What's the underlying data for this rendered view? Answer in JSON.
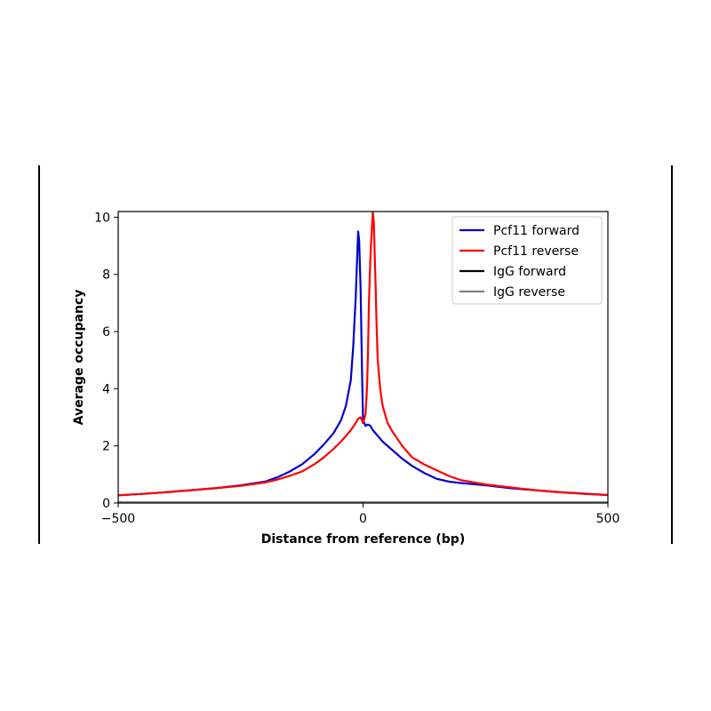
{
  "chart_data": {
    "type": "line",
    "title": "",
    "xlabel": "Distance from reference (bp)",
    "ylabel": "Average occupancy",
    "xlim": [
      -500,
      500
    ],
    "ylim": [
      0,
      10.2
    ],
    "xticks": [
      "−500",
      "0",
      "500"
    ],
    "yticks": [
      "0",
      "2",
      "4",
      "6",
      "8",
      "10"
    ],
    "grid": false,
    "legend_position": "top-right",
    "series": [
      {
        "name": "Pcf11 forward",
        "color": "#0000cc",
        "x": [
          -500,
          -450,
          -400,
          -350,
          -300,
          -250,
          -200,
          -175,
          -150,
          -125,
          -100,
          -80,
          -60,
          -45,
          -35,
          -25,
          -20,
          -15,
          -12,
          -10,
          -8,
          -5,
          -2,
          0,
          5,
          10,
          15,
          20,
          25,
          30,
          40,
          60,
          80,
          100,
          125,
          150,
          175,
          200,
          250,
          300,
          350,
          400,
          450,
          500
        ],
        "y": [
          0.27,
          0.32,
          0.38,
          0.45,
          0.52,
          0.62,
          0.75,
          0.9,
          1.1,
          1.35,
          1.7,
          2.05,
          2.45,
          2.9,
          3.4,
          4.3,
          5.5,
          7.2,
          8.6,
          9.5,
          9.2,
          7.5,
          4.5,
          2.9,
          2.7,
          2.75,
          2.7,
          2.55,
          2.45,
          2.35,
          2.15,
          1.85,
          1.55,
          1.3,
          1.05,
          0.85,
          0.75,
          0.7,
          0.62,
          0.52,
          0.45,
          0.38,
          0.33,
          0.28
        ]
      },
      {
        "name": "Pcf11 reverse",
        "color": "#ff0000",
        "x": [
          -500,
          -450,
          -400,
          -350,
          -300,
          -250,
          -200,
          -175,
          -150,
          -125,
          -100,
          -80,
          -60,
          -45,
          -35,
          -25,
          -15,
          -10,
          -5,
          0,
          5,
          8,
          10,
          12,
          15,
          18,
          20,
          22,
          25,
          28,
          30,
          35,
          40,
          50,
          60,
          80,
          100,
          125,
          150,
          175,
          200,
          250,
          300,
          350,
          400,
          450,
          500
        ],
        "y": [
          0.27,
          0.32,
          0.38,
          0.45,
          0.52,
          0.6,
          0.72,
          0.82,
          0.95,
          1.1,
          1.35,
          1.6,
          1.9,
          2.15,
          2.35,
          2.55,
          2.8,
          2.95,
          3.0,
          2.8,
          3.1,
          4.0,
          5.2,
          7.0,
          8.6,
          9.6,
          10.2,
          9.8,
          8.0,
          6.0,
          5.0,
          4.0,
          3.4,
          2.8,
          2.5,
          2.0,
          1.6,
          1.35,
          1.15,
          0.95,
          0.8,
          0.65,
          0.55,
          0.45,
          0.38,
          0.32,
          0.28
        ]
      },
      {
        "name": "IgG forward",
        "color": "#000000",
        "x": [
          -500,
          500
        ],
        "y": [
          0.02,
          0.02
        ]
      },
      {
        "name": "IgG reverse",
        "color": "#808080",
        "x": [
          -500,
          500
        ],
        "y": [
          0.03,
          0.03
        ]
      }
    ]
  }
}
